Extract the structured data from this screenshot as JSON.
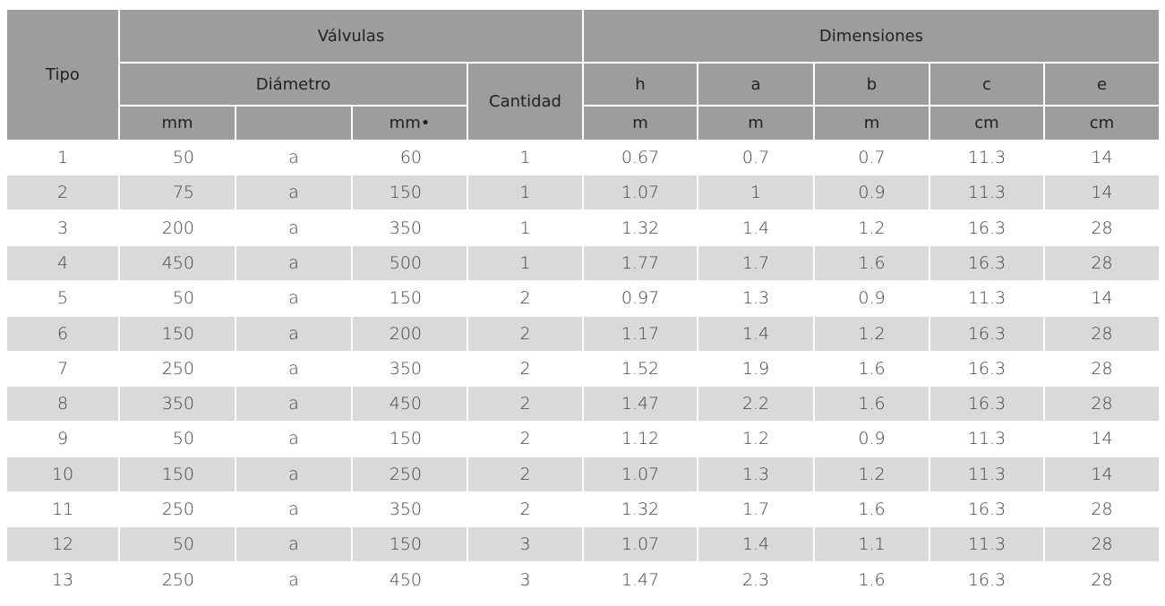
{
  "table": {
    "header": {
      "tipo": "Tipo",
      "valvulas": "Válvulas",
      "dimensiones": "Dimensiones",
      "diametro": "Diámetro",
      "cantidad": "Cantidad",
      "dims": [
        "h",
        "a",
        "b",
        "c",
        "e"
      ],
      "units": [
        "mm",
        "mm•",
        "m",
        "m",
        "m",
        "cm",
        "cm"
      ]
    },
    "rows": [
      [
        "1",
        "50",
        "a",
        "60",
        "1",
        "0.67",
        "0.7",
        "0.7",
        "11.3",
        "14"
      ],
      [
        "2",
        "75",
        "a",
        "150",
        "1",
        "1.07",
        "1",
        "0.9",
        "11.3",
        "14"
      ],
      [
        "3",
        "200",
        "a",
        "350",
        "1",
        "1.32",
        "1.4",
        "1.2",
        "16.3",
        "28"
      ],
      [
        "4",
        "450",
        "a",
        "500",
        "1",
        "1.77",
        "1.7",
        "1.6",
        "16.3",
        "28"
      ],
      [
        "5",
        "50",
        "a",
        "150",
        "2",
        "0.97",
        "1.3",
        "0.9",
        "11.3",
        "14"
      ],
      [
        "6",
        "150",
        "a",
        "200",
        "2",
        "1.17",
        "1.4",
        "1.2",
        "16.3",
        "28"
      ],
      [
        "7",
        "250",
        "a",
        "350",
        "2",
        "1.52",
        "1.9",
        "1.6",
        "16.3",
        "28"
      ],
      [
        "8",
        "350",
        "a",
        "450",
        "2",
        "1.47",
        "2.2",
        "1.6",
        "16.3",
        "28"
      ],
      [
        "9",
        "50",
        "a",
        "150",
        "2",
        "1.12",
        "1.2",
        "0.9",
        "11.3",
        "14"
      ],
      [
        "10",
        "150",
        "a",
        "250",
        "2",
        "1.07",
        "1.3",
        "1.2",
        "11.3",
        "14"
      ],
      [
        "11",
        "250",
        "a",
        "350",
        "2",
        "1.32",
        "1.7",
        "1.6",
        "16.3",
        "28"
      ],
      [
        "12",
        "50",
        "a",
        "150",
        "3",
        "1.07",
        "1.4",
        "1.1",
        "11.3",
        "28"
      ],
      [
        "13",
        "250",
        "a",
        "450",
        "3",
        "1.47",
        "2.3",
        "1.6",
        "16.3",
        "28"
      ]
    ]
  }
}
